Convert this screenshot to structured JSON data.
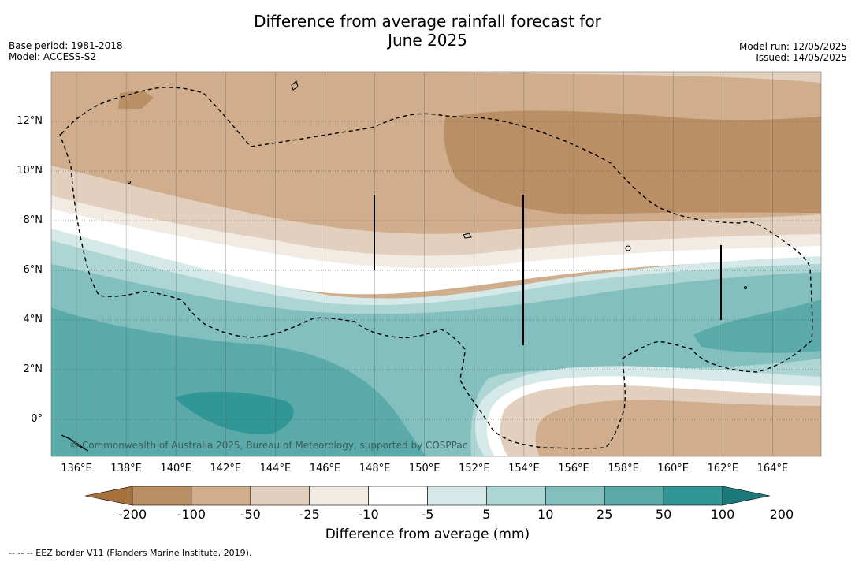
{
  "title_line1": "Difference from average rainfall forecast for",
  "title_line2": "June 2025",
  "meta_left": [
    "Base period: 1981-2018",
    "Model: ACCESS-S2"
  ],
  "meta_right": [
    "Model run: 12/05/2025",
    "Issued: 14/05/2025"
  ],
  "copyright": "© Commonwealth of Australia 2025, Bureau of Meteorology, supported by COSPPac",
  "lat_labels": [
    {
      "text": "12°N",
      "lat": 12
    },
    {
      "text": "10°N",
      "lat": 10
    },
    {
      "text": "8°N",
      "lat": 8
    },
    {
      "text": "6°N",
      "lat": 6
    },
    {
      "text": "4°N",
      "lat": 4
    },
    {
      "text": "2°N",
      "lat": 2
    },
    {
      "text": "0°",
      "lat": 0
    }
  ],
  "lon_labels": [
    {
      "text": "136°E",
      "lon": 136
    },
    {
      "text": "138°E",
      "lon": 138
    },
    {
      "text": "140°E",
      "lon": 140
    },
    {
      "text": "142°E",
      "lon": 142
    },
    {
      "text": "144°E",
      "lon": 144
    },
    {
      "text": "146°E",
      "lon": 146
    },
    {
      "text": "148°E",
      "lon": 148
    },
    {
      "text": "150°E",
      "lon": 150
    },
    {
      "text": "152°E",
      "lon": 152
    },
    {
      "text": "154°E",
      "lon": 154
    },
    {
      "text": "156°E",
      "lon": 156
    },
    {
      "text": "158°E",
      "lon": 158
    },
    {
      "text": "160°E",
      "lon": 160
    },
    {
      "text": "162°E",
      "lon": 162
    },
    {
      "text": "164°E",
      "lon": 164
    }
  ],
  "colorbar": {
    "title": "Difference from average (mm)",
    "ticks": [
      "-200",
      "-100",
      "-50",
      "-25",
      "-10",
      "-5",
      "5",
      "10",
      "25",
      "50",
      "100",
      "200"
    ],
    "colors": [
      "#a6713d",
      "#bb8f65",
      "#cfad8d",
      "#e2cfbd",
      "#f2ebe3",
      "#ffffff",
      "#d5eae8",
      "#acd5d4",
      "#83bfbf",
      "#5aaaaa",
      "#309796",
      "#1b7a79"
    ]
  },
  "footnote": "--  --  -- EEZ border V11 (Flanders Marine Institute, 2019)."
}
